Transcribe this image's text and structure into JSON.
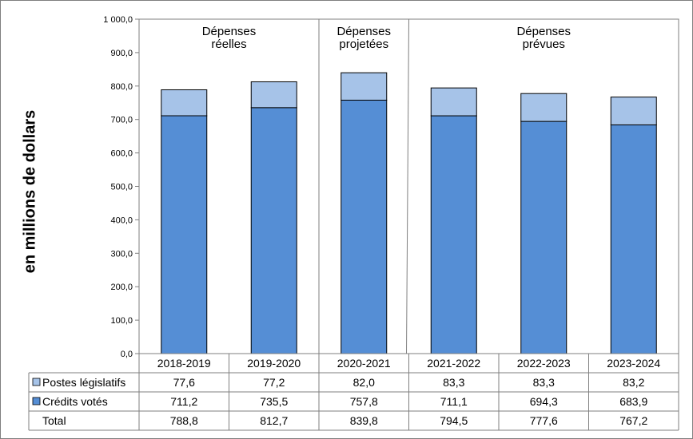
{
  "chart_data": {
    "type": "bar",
    "stacked": true,
    "ylabel": "en millions  de dollars",
    "ylim": [
      0,
      1000
    ],
    "yticks": [
      "0,0",
      "100,0",
      "200,0",
      "300,0",
      "400,0",
      "500,0",
      "600,0",
      "700,0",
      "800,0",
      "900,0",
      "1 000,0"
    ],
    "categories": [
      "2018-2019",
      "2019-2020",
      "2020-2021",
      "2021-2022",
      "2022-2023",
      "2023-2024"
    ],
    "periods": [
      {
        "label_lines": [
          "Dépenses",
          "réelles"
        ],
        "categories": [
          0,
          1
        ]
      },
      {
        "label_lines": [
          "Dépenses",
          "projetées"
        ],
        "categories": [
          2
        ]
      },
      {
        "label_lines": [
          "Dépenses",
          "prévues"
        ],
        "categories": [
          3,
          4,
          5
        ]
      }
    ],
    "series": [
      {
        "name": "Crédits votés",
        "color": "#558ed5",
        "values": [
          711.2,
          735.5,
          757.8,
          711.1,
          694.3,
          683.9
        ],
        "labels": [
          "711,2",
          "735,5",
          "757,8",
          "711,1",
          "694,3",
          "683,9"
        ]
      },
      {
        "name": "Postes législatifs",
        "color": "#a6c3e8",
        "values": [
          77.6,
          77.2,
          82.0,
          83.3,
          83.3,
          83.2
        ],
        "labels": [
          "77,6",
          "77,2",
          "82,0",
          "83,3",
          "83,3",
          "83,2"
        ]
      }
    ],
    "table": {
      "total_label": "Total",
      "totals": [
        788.8,
        812.7,
        839.8,
        794.5,
        777.6,
        767.2
      ],
      "total_labels": [
        "788,8",
        "812,7",
        "839,8",
        "794,5",
        "777,6",
        "767,2"
      ]
    },
    "grid": false,
    "legend": "data-table"
  }
}
